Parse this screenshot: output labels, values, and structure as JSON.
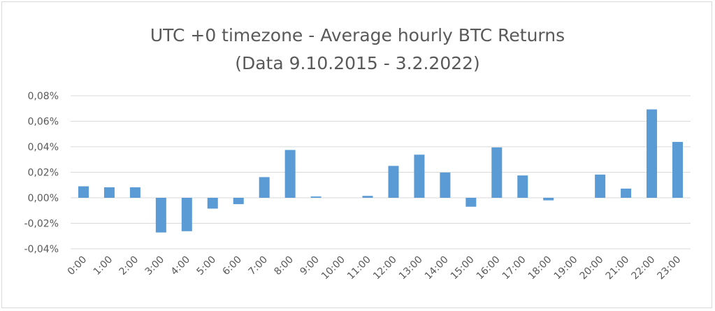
{
  "chart_data": {
    "type": "bar",
    "title": "UTC +0 timezone - Average hourly BTC Returns",
    "subtitle": "(Data 9.10.2015 - 3.2.2022)",
    "xlabel": "",
    "ylabel": "",
    "ylim": [
      -0.04,
      0.08
    ],
    "yticks": [
      "0,08%",
      "0,06%",
      "0,04%",
      "0,02%",
      "0,00%",
      "-0,02%",
      "-0,04%"
    ],
    "ytick_values": [
      0.08,
      0.06,
      0.04,
      0.02,
      0.0,
      -0.02,
      -0.04
    ],
    "categories": [
      "0:00",
      "1:00",
      "2:00",
      "3:00",
      "4:00",
      "5:00",
      "6:00",
      "7:00",
      "8:00",
      "9:00",
      "10:00",
      "11:00",
      "12:00",
      "13:00",
      "14:00",
      "15:00",
      "16:00",
      "17:00",
      "18:00",
      "19:00",
      "20:00",
      "21:00",
      "22:00",
      "23:00"
    ],
    "values": [
      0.009,
      0.0082,
      0.0082,
      -0.0272,
      -0.0262,
      -0.0085,
      -0.005,
      0.0162,
      0.0375,
      0.001,
      0.0,
      0.0015,
      0.025,
      0.0338,
      0.0198,
      -0.007,
      0.0395,
      0.0175,
      -0.002,
      0.0,
      0.0182,
      0.0072,
      0.0693,
      0.0438
    ],
    "grid": true,
    "bar_color": "#5b9bd5",
    "grid_color": "#d9d9d9",
    "text_color": "#595959"
  }
}
